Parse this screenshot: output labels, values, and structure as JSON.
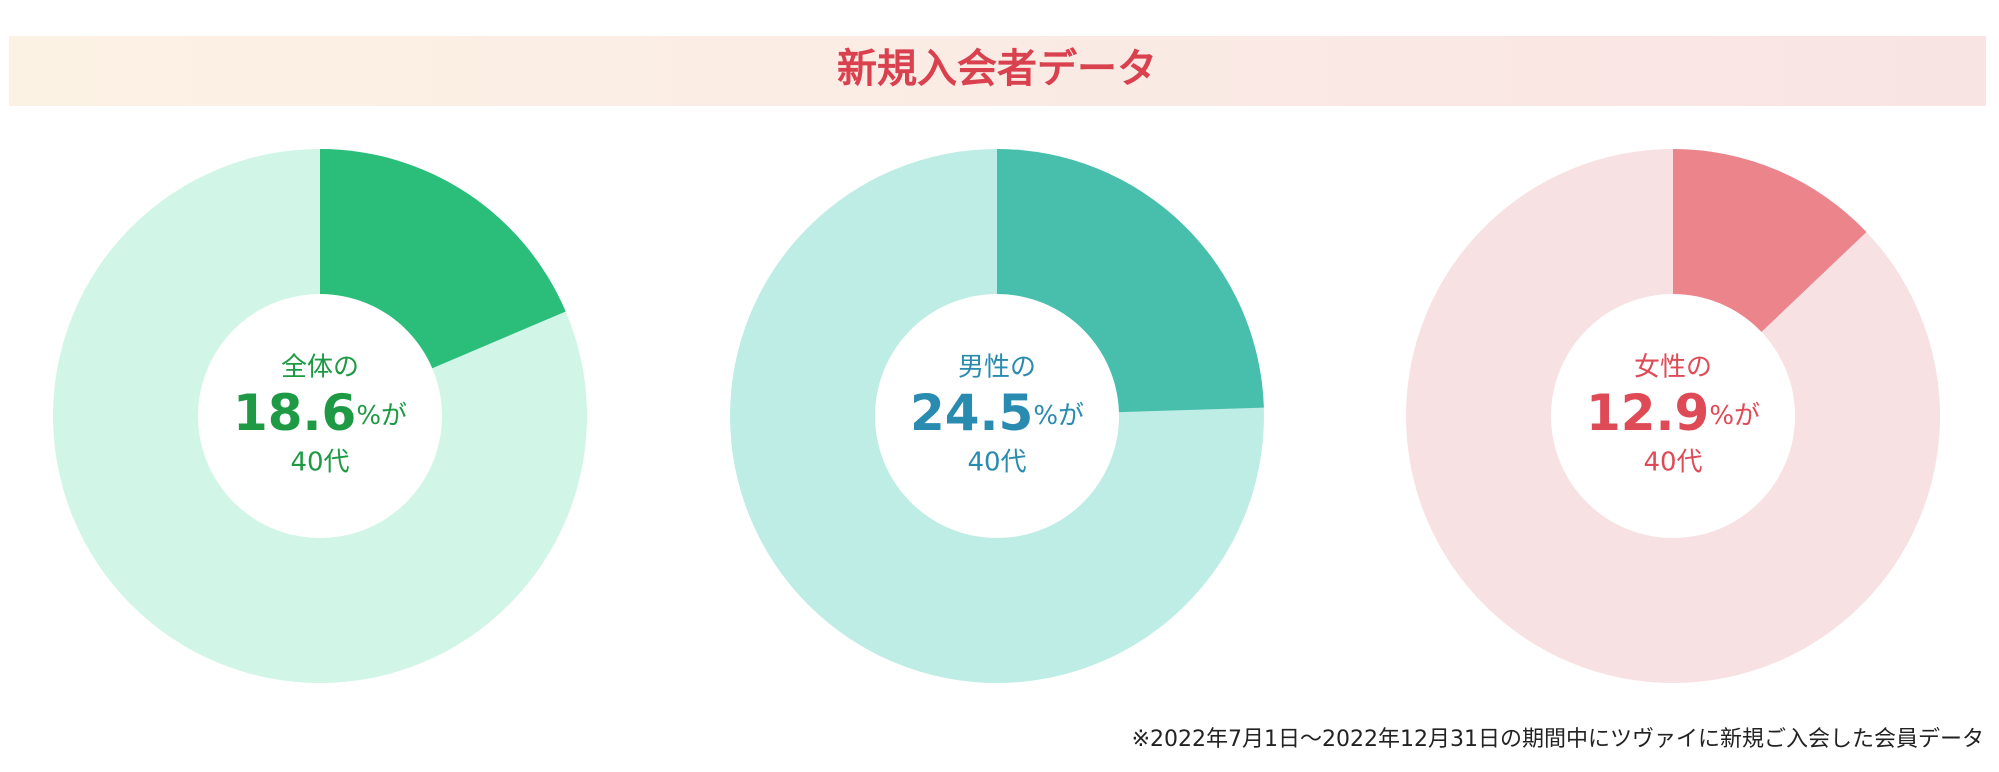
{
  "title": "新規入会者データ",
  "footnote": "※2022年7月1日〜2022年12月31日の期間中にツヴァイに新規ご入会した会員データ",
  "chart_data": [
    {
      "type": "donut",
      "label": "全体の",
      "value": 18.6,
      "unit": "%が",
      "sublabel": "40代",
      "color": "#2bbe7b",
      "track_color": "#d1f5e6",
      "text_color": "#1e9a45"
    },
    {
      "type": "donut",
      "label": "男性の",
      "value": 24.5,
      "unit": "%が",
      "sublabel": "40代",
      "color": "#48bfac",
      "track_color": "#beede5",
      "text_color": "#2a8bb0"
    },
    {
      "type": "donut",
      "label": "女性の",
      "value": 12.9,
      "unit": "%が",
      "sublabel": "40代",
      "color": "#eb858b",
      "track_color": "#f8e1e3",
      "text_color": "#de4b57"
    }
  ]
}
